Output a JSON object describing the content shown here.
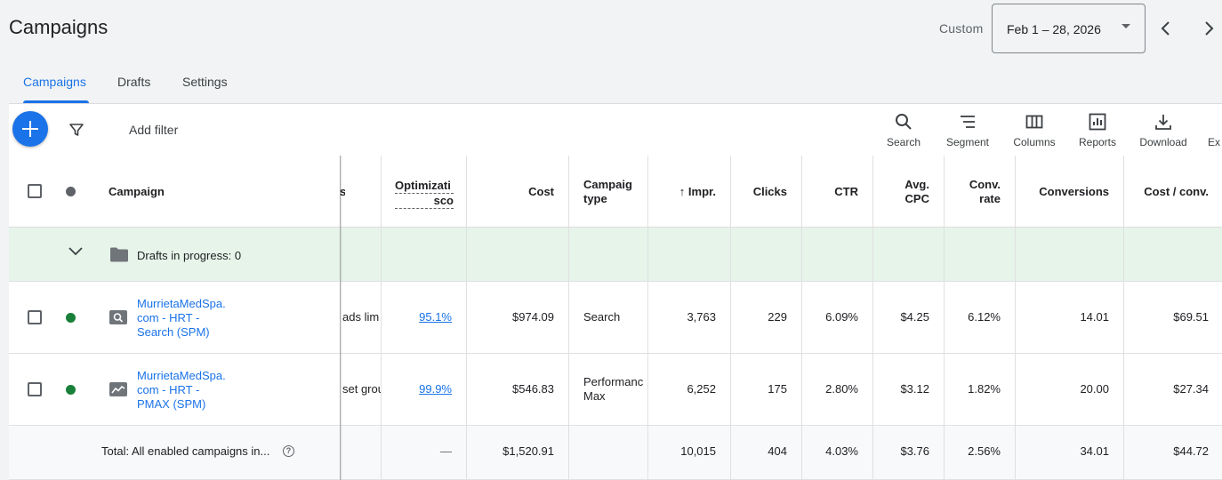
{
  "header": {
    "title": "Campaigns",
    "custom_label": "Custom",
    "date_range": "Feb 1 – 28, 2026"
  },
  "tabs": [
    {
      "label": "Campaigns",
      "active": true
    },
    {
      "label": "Drafts",
      "active": false
    },
    {
      "label": "Settings",
      "active": false
    }
  ],
  "toolbar": {
    "add_filter": "Add filter",
    "tools": {
      "search": "Search",
      "segment": "Segment",
      "columns": "Columns",
      "reports": "Reports",
      "download": "Download",
      "expand": "Ex"
    }
  },
  "table": {
    "headers": {
      "campaign": "Campaign",
      "status_partial": "s",
      "optimization_1": "Optimizati",
      "optimization_2": "sco",
      "cost": "Cost",
      "campaign_type_1": "Campaig",
      "campaign_type_2": "type",
      "impr": "Impr.",
      "clicks": "Clicks",
      "ctr": "CTR",
      "avg_cpc_1": "Avg.",
      "avg_cpc_2": "CPC",
      "conv_rate_1": "Conv.",
      "conv_rate_2": "rate",
      "conversions": "Conversions",
      "cost_conv": "Cost / conv."
    },
    "drafts_row": "Drafts in progress: 0",
    "rows": [
      {
        "name_lines": [
          "MurrietaMedSpa.",
          "com - HRT -",
          "Search (SPM)"
        ],
        "status_partial": "ads lim",
        "opt_score": "95.1%",
        "cost": "$974.09",
        "type_lines": [
          "Search",
          ""
        ],
        "impr": "3,763",
        "clicks": "229",
        "ctr": "6.09%",
        "avg_cpc": "$4.25",
        "conv_rate": "6.12%",
        "conversions": "14.01",
        "cost_conv": "$69.51"
      },
      {
        "name_lines": [
          "MurrietaMedSpa.",
          "com - HRT -",
          "PMAX (SPM)"
        ],
        "status_partial": "set grou",
        "opt_score": "99.9%",
        "cost": "$546.83",
        "type_lines": [
          "Performanc",
          "Max"
        ],
        "impr": "6,252",
        "clicks": "175",
        "ctr": "2.80%",
        "avg_cpc": "$3.12",
        "conv_rate": "1.82%",
        "conversions": "20.00",
        "cost_conv": "$27.34"
      }
    ],
    "total": {
      "label": "Total: All enabled campaigns in...",
      "opt_score": "—",
      "cost": "$1,520.91",
      "impr": "10,015",
      "clicks": "404",
      "ctr": "4.03%",
      "avg_cpc": "$3.76",
      "conv_rate": "2.56%",
      "conversions": "34.01",
      "cost_conv": "$44.72"
    }
  },
  "colors": {
    "accent": "#1a73e8",
    "enabled_status": "#188038",
    "drafts_bg": "#e6f4ea"
  },
  "icons": [
    "chevron-left-icon",
    "chevron-right-icon",
    "plus-icon",
    "filter-icon",
    "search-icon",
    "segment-icon",
    "columns-icon",
    "reports-icon",
    "download-icon",
    "folder-icon",
    "chevron-down-icon",
    "search-campaign-icon",
    "pmax-campaign-icon",
    "help-icon"
  ]
}
